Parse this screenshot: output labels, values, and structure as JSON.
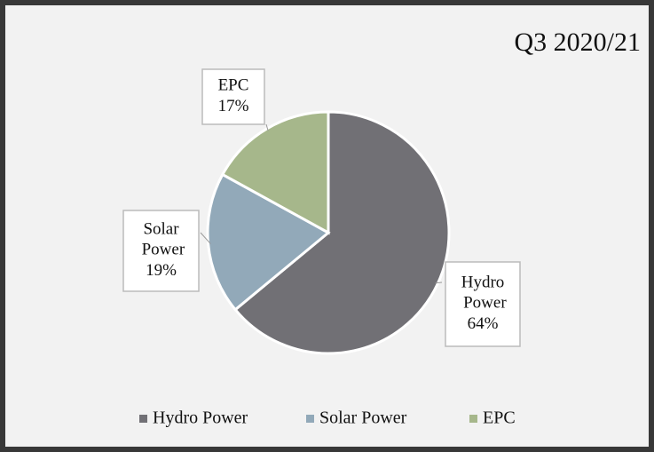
{
  "chart_data": {
    "type": "pie",
    "title": "Q3 2020/21",
    "categories": [
      "Hydro Power",
      "Solar Power",
      "EPC"
    ],
    "values": [
      64,
      19,
      17
    ],
    "value_labels": [
      "64%",
      "19%",
      "17%"
    ],
    "colors": [
      "#717075",
      "#92a9b9",
      "#a6b78b"
    ],
    "legend": "bottom"
  }
}
